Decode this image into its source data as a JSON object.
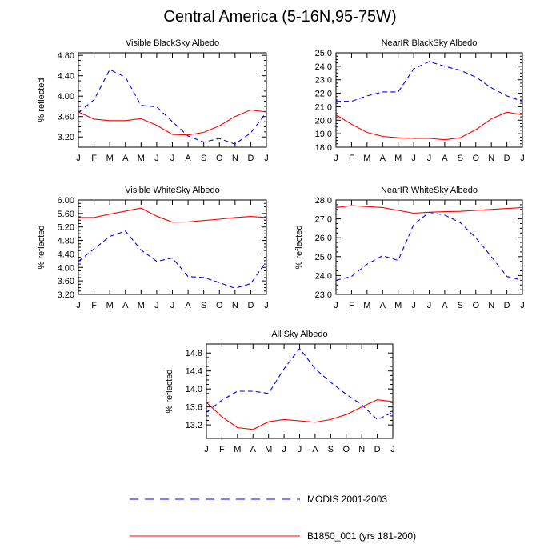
{
  "title": "Central America (5-16N,95-75W)",
  "legend": {
    "placement": "bottom-center",
    "entries": [
      {
        "label": "MODIS 2001-2003",
        "color": "#0000ff",
        "dash": true
      },
      {
        "label": "B1850_001 (yrs 181-200)",
        "color": "#ff0000",
        "dash": false
      }
    ]
  },
  "chart_data": [
    {
      "type": "line",
      "title": "Visible BlackSky Albedo",
      "ylabel": "% reflected",
      "categories": [
        "J",
        "F",
        "M",
        "A",
        "M",
        "J",
        "J",
        "A",
        "S",
        "O",
        "N",
        "D",
        "J"
      ],
      "yticks": [
        "3.20",
        "3.60",
        "4.00",
        "4.40",
        "4.80"
      ],
      "ylim": [
        3.0,
        4.85
      ],
      "series": [
        {
          "name": "MODIS 2001-2003",
          "color": "#0000ff",
          "dashed": true,
          "values": [
            3.68,
            3.93,
            4.52,
            4.37,
            3.82,
            3.79,
            3.5,
            3.22,
            3.1,
            3.17,
            3.06,
            3.28,
            3.68
          ]
        },
        {
          "name": "B1850_001 (yrs 181-200)",
          "color": "#ff0000",
          "dashed": false,
          "values": [
            3.69,
            3.55,
            3.52,
            3.52,
            3.56,
            3.43,
            3.25,
            3.24,
            3.29,
            3.42,
            3.6,
            3.73,
            3.69
          ]
        }
      ]
    },
    {
      "type": "line",
      "title": "NearIR BlackSky Albedo",
      "ylabel": "",
      "categories": [
        "J",
        "F",
        "M",
        "A",
        "M",
        "J",
        "J",
        "A",
        "S",
        "O",
        "N",
        "D",
        "J"
      ],
      "yticks": [
        "18.0",
        "19.0",
        "20.0",
        "21.0",
        "22.0",
        "23.0",
        "24.0",
        "25.0"
      ],
      "ylim": [
        18.0,
        25.0
      ],
      "series": [
        {
          "name": "MODIS 2001-2003",
          "color": "#0000ff",
          "dashed": true,
          "values": [
            21.4,
            21.4,
            21.8,
            22.1,
            22.1,
            23.8,
            24.35,
            24.0,
            23.7,
            23.2,
            22.4,
            21.8,
            21.4
          ]
        },
        {
          "name": "B1850_001 (yrs 181-200)",
          "color": "#ff0000",
          "dashed": false,
          "values": [
            20.4,
            19.7,
            19.1,
            18.8,
            18.7,
            18.65,
            18.65,
            18.55,
            18.7,
            19.3,
            20.1,
            20.6,
            20.4
          ]
        }
      ]
    },
    {
      "type": "line",
      "title": "Visible WhiteSky Albedo",
      "ylabel": "% reflected",
      "categories": [
        "J",
        "F",
        "M",
        "A",
        "M",
        "J",
        "J",
        "A",
        "S",
        "O",
        "N",
        "D",
        "J"
      ],
      "yticks": [
        "3.20",
        "3.60",
        "4.00",
        "4.40",
        "4.80",
        "5.20",
        "5.60",
        "6.00"
      ],
      "ylim": [
        3.2,
        6.0
      ],
      "series": [
        {
          "name": "MODIS 2001-2003",
          "color": "#0000ff",
          "dashed": true,
          "values": [
            4.18,
            4.55,
            4.92,
            5.08,
            4.52,
            4.18,
            4.28,
            3.73,
            3.7,
            3.55,
            3.38,
            3.52,
            4.18
          ]
        },
        {
          "name": "B1850_001 (yrs 181-200)",
          "color": "#ff0000",
          "dashed": false,
          "values": [
            5.48,
            5.48,
            5.58,
            5.67,
            5.76,
            5.52,
            5.34,
            5.35,
            5.39,
            5.43,
            5.48,
            5.51,
            5.48
          ]
        }
      ]
    },
    {
      "type": "line",
      "title": "NearIR WhiteSky Albedo",
      "ylabel": "% reflected",
      "categories": [
        "J",
        "F",
        "M",
        "A",
        "M",
        "J",
        "J",
        "A",
        "S",
        "O",
        "N",
        "D",
        "J"
      ],
      "yticks": [
        "23.0",
        "24.0",
        "25.0",
        "26.0",
        "27.0",
        "28.0"
      ],
      "ylim": [
        23.0,
        28.0
      ],
      "series": [
        {
          "name": "MODIS 2001-2003",
          "color": "#0000ff",
          "dashed": true,
          "values": [
            23.75,
            23.95,
            24.6,
            25.05,
            24.8,
            26.7,
            27.35,
            27.2,
            26.8,
            26.0,
            25.0,
            23.95,
            23.75
          ]
        },
        {
          "name": "B1850_001 (yrs 181-200)",
          "color": "#ff0000",
          "dashed": false,
          "values": [
            27.6,
            27.7,
            27.65,
            27.6,
            27.45,
            27.3,
            27.35,
            27.38,
            27.4,
            27.45,
            27.5,
            27.55,
            27.6
          ]
        }
      ]
    },
    {
      "type": "line",
      "title": "All Sky Albedo",
      "ylabel": "% reflected",
      "categories": [
        "J",
        "F",
        "M",
        "A",
        "M",
        "J",
        "J",
        "A",
        "S",
        "O",
        "N",
        "D",
        "J"
      ],
      "yticks": [
        "13.2",
        "13.6",
        "14.0",
        "14.4",
        "14.8"
      ],
      "ylim": [
        12.9,
        15.0
      ],
      "series": [
        {
          "name": "MODIS 2001-2003",
          "color": "#0000ff",
          "dashed": true,
          "values": [
            13.48,
            13.75,
            13.95,
            13.95,
            13.9,
            14.45,
            14.9,
            14.45,
            14.15,
            13.88,
            13.65,
            13.32,
            13.48
          ]
        },
        {
          "name": "B1850_001 (yrs 181-200)",
          "color": "#ff0000",
          "dashed": false,
          "values": [
            13.7,
            13.38,
            13.14,
            13.1,
            13.27,
            13.32,
            13.29,
            13.26,
            13.32,
            13.43,
            13.6,
            13.76,
            13.72
          ]
        }
      ]
    }
  ]
}
